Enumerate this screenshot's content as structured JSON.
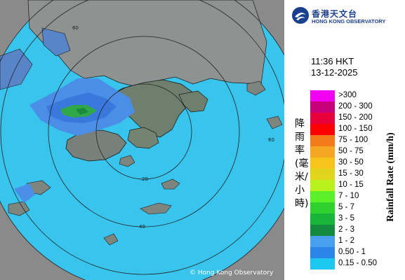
{
  "organization": {
    "name_zh": "香港天文台",
    "name_en": "HONG KONG OBSERVATORY",
    "brand_color": "#1b3f8f"
  },
  "timestamp": {
    "time": "11:36 HKT",
    "date": "13-12-2025"
  },
  "legend": {
    "title_zh": "降雨率(毫米/小時)",
    "title_en": "Rainfall Rate (mm/h)",
    "items": [
      {
        "label": ">300",
        "color": "#f000f0"
      },
      {
        "label": "200 - 300",
        "color": "#c8007a"
      },
      {
        "label": "150 - 200",
        "color": "#e8003c"
      },
      {
        "label": "100 - 150",
        "color": "#ff0000"
      },
      {
        "label": "75 - 100",
        "color": "#f27a18"
      },
      {
        "label": "50 - 75",
        "color": "#f5a623"
      },
      {
        "label": "30 - 50",
        "color": "#f7c41c"
      },
      {
        "label": "15 - 30",
        "color": "#e0d51a"
      },
      {
        "label": "10 - 15",
        "color": "#b9f21a"
      },
      {
        "label": "7 - 10",
        "color": "#5cf02a"
      },
      {
        "label": "5 - 7",
        "color": "#2ed12e"
      },
      {
        "label": "3 - 5",
        "color": "#17b53a"
      },
      {
        "label": "2 - 3",
        "color": "#138a3d"
      },
      {
        "label": "1 - 2",
        "color": "#4aa0f0"
      },
      {
        "label": "0.50 - 1",
        "color": "#2c86ea"
      },
      {
        "label": "0.15 - 0.50",
        "color": "#1cc8f0"
      }
    ]
  },
  "map": {
    "copyright": "© Hong Kong Observatory",
    "range_labels": [
      "60",
      "60",
      "40",
      "20"
    ]
  }
}
